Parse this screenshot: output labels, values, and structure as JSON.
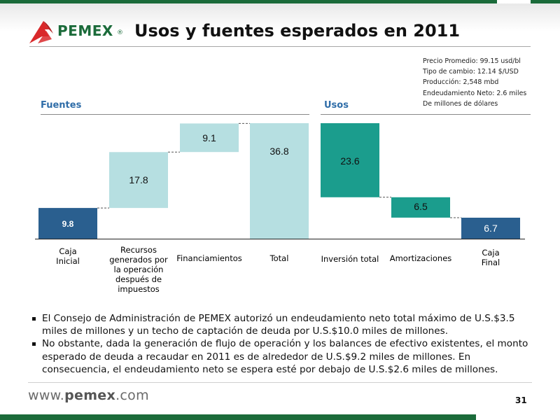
{
  "header": {
    "brand": "PEMEX",
    "reg_mark": "®",
    "title": "Usos y fuentes esperados en 2011"
  },
  "notes": [
    "Precio Promedio: 99.15 usd/bl",
    "Tipo de cambio: 12.14 $/USD",
    "Producción: 2,548  mbd",
    "Endeudamiento Neto: 2.6 miles",
    "De millones de dólares"
  ],
  "sections": {
    "fuentes": "Fuentes",
    "usos": "Usos"
  },
  "colors": {
    "dark_blue": "#2a5f8f",
    "light_teal": "#b6dfe1",
    "teal": "#1b9d8d",
    "section_title": "#2f6da8",
    "brand_green": "#1b6b3a",
    "logo_red": "#d9292b"
  },
  "chart_data": {
    "type": "bar",
    "subtype": "waterfall",
    "categories": [
      "Caja Inicial",
      "Recursos generados por la operación después de impuestos",
      "Financiamientos",
      "Total",
      "Inversión total",
      "Amortizaciones",
      "Caja Final"
    ],
    "category_lines": [
      [
        "Caja",
        "Inicial"
      ],
      [
        "Recursos",
        "generados por",
        "la operación",
        "después de",
        "impuestos"
      ],
      [
        "Financiamientos"
      ],
      [
        "Total"
      ],
      [
        "Inversión total"
      ],
      [
        "Amortizaciones"
      ],
      [
        "Caja",
        "Final"
      ]
    ],
    "values": [
      9.8,
      17.8,
      9.1,
      36.8,
      23.6,
      6.5,
      6.7
    ],
    "bases": [
      0,
      9.8,
      27.6,
      0,
      13.2,
      6.7,
      0
    ],
    "bar_colors": [
      "dark_blue",
      "light_teal",
      "light_teal",
      "light_teal",
      "teal",
      "teal",
      "dark_blue"
    ],
    "label_colors": [
      "#ffffff",
      "#111111",
      "#111111",
      "#111111",
      "#111111",
      "#111111",
      "#ffffff"
    ],
    "labels": [
      "9.8",
      "17.8",
      "9.1",
      "36.8",
      "23.6",
      "6.5",
      "6.7"
    ],
    "ylim": [
      0,
      36.8
    ],
    "grid": false,
    "legend": "none",
    "title": "",
    "xlabel": "",
    "ylabel": ""
  },
  "bullets": [
    "El Consejo de Administración de PEMEX autorizó un endeudamiento neto total máximo de U.S.$3.5 miles de millones y un techo de captación de deuda por U.S.$10.0 miles de millones.",
    "No obstante, dada la generación de flujo de operación y los balances de efectivo existentes, el monto esperado de deuda a recaudar en 2011 es de alrededor de U.S.$9.2 miles de millones. En consecuencia, el endeudamiento neto se espera esté por debajo de U.S.$2.6 miles de millones."
  ],
  "footer": {
    "site_prefix": "www.",
    "site_brand": "pemex",
    "site_suffix": ".com",
    "page_number": "31"
  }
}
